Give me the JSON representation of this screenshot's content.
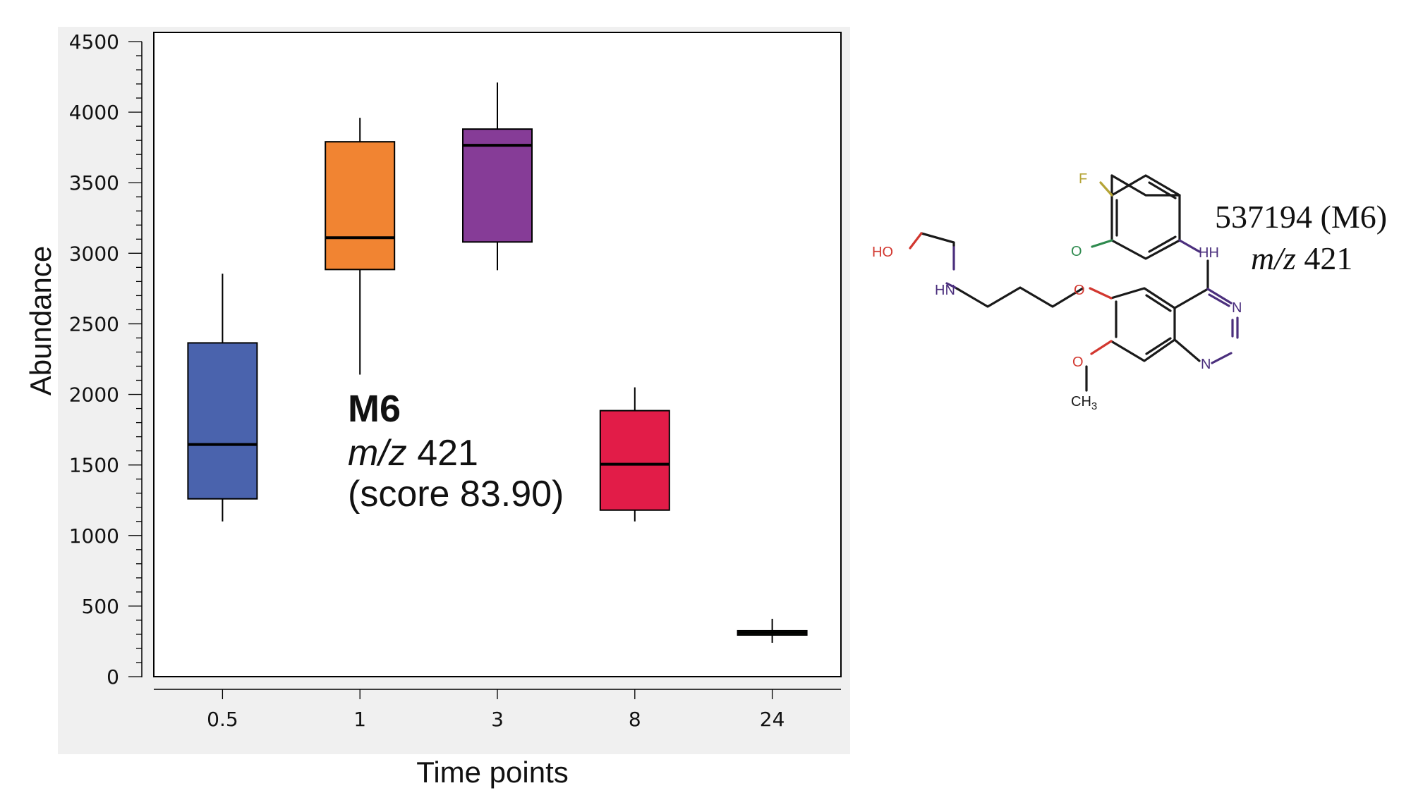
{
  "chart_data": {
    "type": "box",
    "xlabel": "Time points",
    "ylabel": "Abundance",
    "ylim": [
      0,
      4500
    ],
    "yticks": [
      0,
      500,
      1000,
      1500,
      2000,
      2500,
      3000,
      3500,
      4000,
      4500
    ],
    "grid": false,
    "categories": [
      "0.5",
      "1",
      "3",
      "8",
      "24"
    ],
    "boxes": [
      {
        "category": "0.5",
        "whisker_low": 1100,
        "q1": 1260,
        "median": 1645,
        "q3": 2365,
        "whisker_high": 2855,
        "color": "#4a63ad"
      },
      {
        "category": "1",
        "whisker_low": 2140,
        "q1": 2885,
        "median": 3110,
        "q3": 3790,
        "whisker_high": 3960,
        "color": "#f18432"
      },
      {
        "category": "3",
        "whisker_low": 2880,
        "q1": 3080,
        "median": 3765,
        "q3": 3880,
        "whisker_high": 4210,
        "color": "#863c97"
      },
      {
        "category": "8",
        "whisker_low": 1100,
        "q1": 1180,
        "median": 1505,
        "q3": 1885,
        "whisker_high": 2050,
        "color": "#e21c48"
      },
      {
        "category": "24",
        "whisker_low": 240,
        "q1": 295,
        "median": 310,
        "q3": 325,
        "whisker_high": 410,
        "color": "#7fb04a"
      }
    ],
    "annotation": {
      "name": "M6",
      "mz_prefix": "m/z",
      "mz_value": "421",
      "score": "(score 83.90)"
    }
  },
  "structure": {
    "title_line1": "537194 (M6)",
    "title_mz_prefix": "m/z",
    "title_mz_value": "421",
    "atom_labels": {
      "fluorine": "F",
      "oxygen_ring": "O",
      "hydroxyl": "HO",
      "amine": "HN",
      "hydrogens": "HH",
      "ether_oxygen": "O",
      "methoxy_oxygen": "O",
      "methyl": "CH",
      "methyl_subscript": "3",
      "nitrogen_top": "N",
      "nitrogen_bottom": "N"
    },
    "atom_colors": {
      "F": "#b5a436",
      "O_green": "#2e8a4e",
      "O_red": "#d2372f",
      "N": "#4b2f7d",
      "bond": "#1a1a1a"
    }
  }
}
